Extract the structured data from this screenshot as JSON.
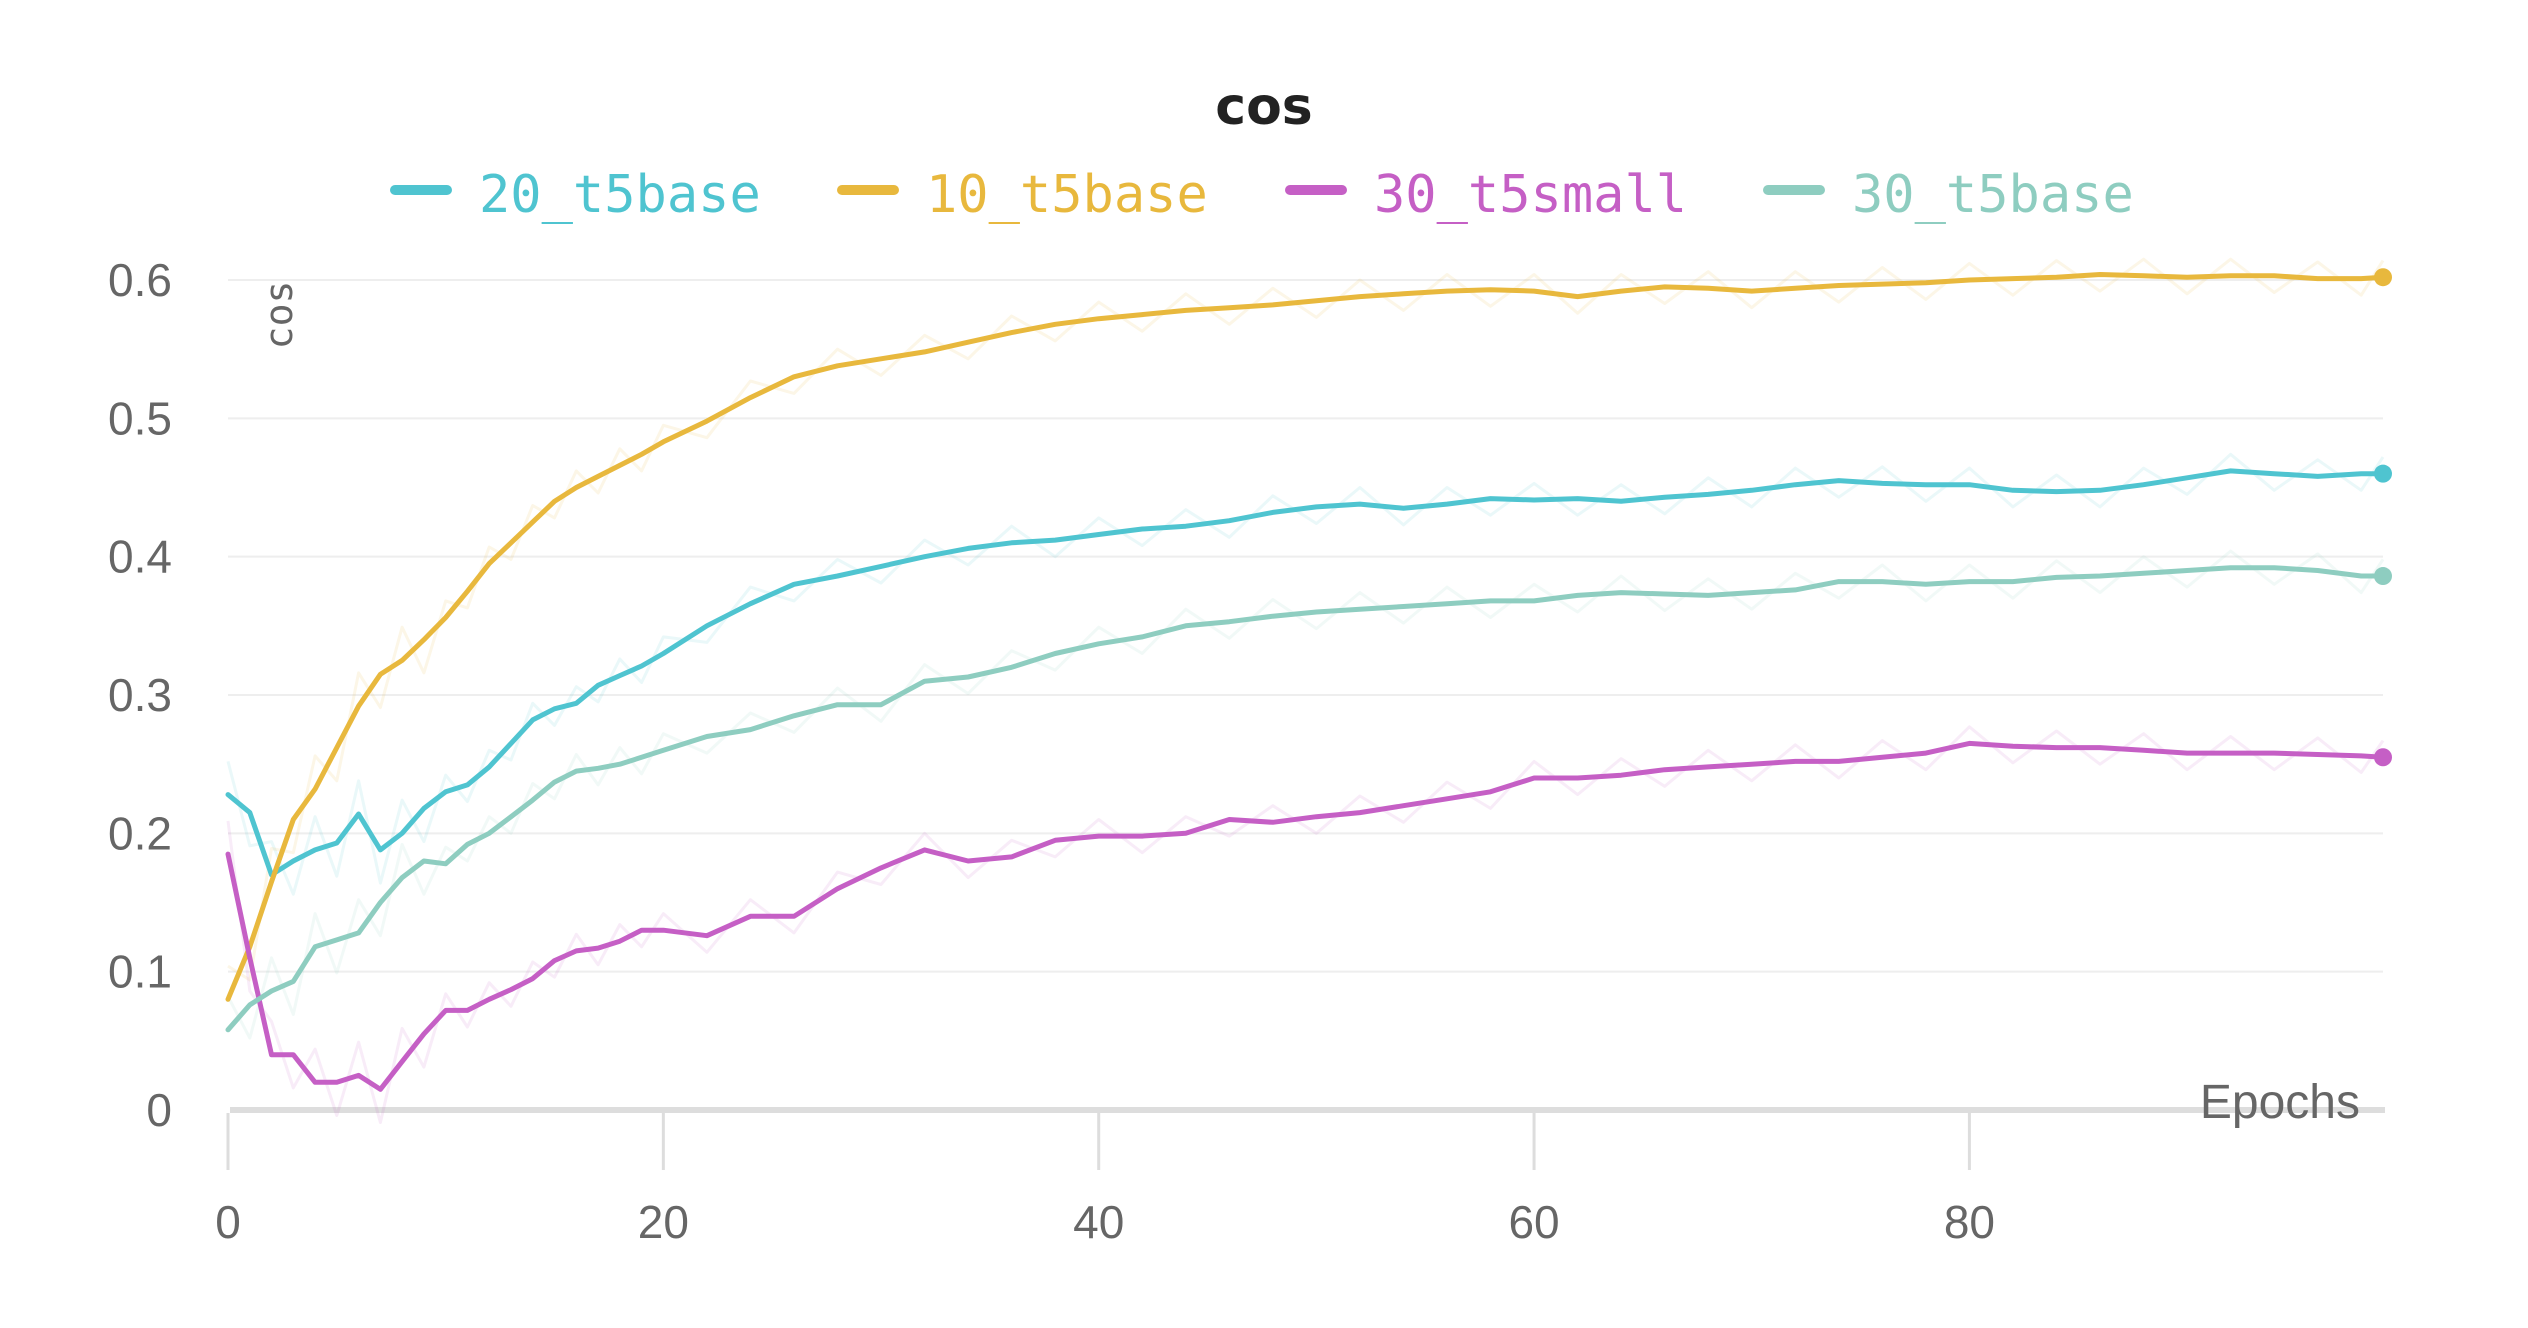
{
  "chart_data": {
    "type": "line",
    "title": "cos",
    "xlabel": "Epochs",
    "ylabel": "cos",
    "xlim": [
      0,
      99
    ],
    "ylim": [
      0,
      0.6
    ],
    "x_ticks": [
      0,
      20,
      40,
      60,
      80
    ],
    "y_ticks": [
      0,
      0.1,
      0.2,
      0.3,
      0.4,
      0.5,
      0.6
    ],
    "grid": true,
    "legend_position": "top",
    "series": [
      {
        "name": "20_t5base",
        "color": "#4fc4d0",
        "points": [
          [
            0,
            0.228
          ],
          [
            1,
            0.215
          ],
          [
            2,
            0.17
          ],
          [
            3,
            0.18
          ],
          [
            4,
            0.188
          ],
          [
            5,
            0.193
          ],
          [
            6,
            0.214
          ],
          [
            7,
            0.188
          ],
          [
            8,
            0.2
          ],
          [
            9,
            0.218
          ],
          [
            10,
            0.23
          ],
          [
            11,
            0.235
          ],
          [
            12,
            0.248
          ],
          [
            13,
            0.265
          ],
          [
            14,
            0.282
          ],
          [
            15,
            0.29
          ],
          [
            16,
            0.294
          ],
          [
            17,
            0.307
          ],
          [
            18,
            0.314
          ],
          [
            19,
            0.321
          ],
          [
            20,
            0.33
          ],
          [
            22,
            0.35
          ],
          [
            24,
            0.366
          ],
          [
            26,
            0.38
          ],
          [
            28,
            0.386
          ],
          [
            30,
            0.393
          ],
          [
            32,
            0.4
          ],
          [
            34,
            0.406
          ],
          [
            36,
            0.41
          ],
          [
            38,
            0.412
          ],
          [
            40,
            0.416
          ],
          [
            42,
            0.42
          ],
          [
            44,
            0.422
          ],
          [
            46,
            0.426
          ],
          [
            48,
            0.432
          ],
          [
            50,
            0.436
          ],
          [
            52,
            0.438
          ],
          [
            54,
            0.435
          ],
          [
            56,
            0.438
          ],
          [
            58,
            0.442
          ],
          [
            60,
            0.441
          ],
          [
            62,
            0.442
          ],
          [
            64,
            0.44
          ],
          [
            66,
            0.443
          ],
          [
            68,
            0.445
          ],
          [
            70,
            0.448
          ],
          [
            72,
            0.452
          ],
          [
            74,
            0.455
          ],
          [
            76,
            0.453
          ],
          [
            78,
            0.452
          ],
          [
            80,
            0.452
          ],
          [
            82,
            0.448
          ],
          [
            84,
            0.447
          ],
          [
            86,
            0.448
          ],
          [
            88,
            0.452
          ],
          [
            90,
            0.457
          ],
          [
            92,
            0.462
          ],
          [
            94,
            0.46
          ],
          [
            96,
            0.458
          ],
          [
            98,
            0.46
          ],
          [
            99,
            0.46
          ]
        ]
      },
      {
        "name": "10_t5base",
        "color": "#e8b83d",
        "points": [
          [
            0,
            0.08
          ],
          [
            1,
            0.118
          ],
          [
            2,
            0.165
          ],
          [
            3,
            0.21
          ],
          [
            4,
            0.232
          ],
          [
            5,
            0.262
          ],
          [
            6,
            0.292
          ],
          [
            7,
            0.315
          ],
          [
            8,
            0.325
          ],
          [
            9,
            0.34
          ],
          [
            10,
            0.356
          ],
          [
            11,
            0.375
          ],
          [
            12,
            0.395
          ],
          [
            13,
            0.41
          ],
          [
            14,
            0.425
          ],
          [
            15,
            0.44
          ],
          [
            16,
            0.45
          ],
          [
            17,
            0.458
          ],
          [
            18,
            0.466
          ],
          [
            19,
            0.474
          ],
          [
            20,
            0.483
          ],
          [
            22,
            0.498
          ],
          [
            24,
            0.515
          ],
          [
            26,
            0.53
          ],
          [
            28,
            0.538
          ],
          [
            30,
            0.543
          ],
          [
            32,
            0.548
          ],
          [
            34,
            0.555
          ],
          [
            36,
            0.562
          ],
          [
            38,
            0.568
          ],
          [
            40,
            0.572
          ],
          [
            42,
            0.575
          ],
          [
            44,
            0.578
          ],
          [
            46,
            0.58
          ],
          [
            48,
            0.582
          ],
          [
            50,
            0.585
          ],
          [
            52,
            0.588
          ],
          [
            54,
            0.59
          ],
          [
            56,
            0.592
          ],
          [
            58,
            0.593
          ],
          [
            60,
            0.592
          ],
          [
            62,
            0.588
          ],
          [
            64,
            0.592
          ],
          [
            66,
            0.595
          ],
          [
            68,
            0.594
          ],
          [
            70,
            0.592
          ],
          [
            72,
            0.594
          ],
          [
            74,
            0.596
          ],
          [
            76,
            0.597
          ],
          [
            78,
            0.598
          ],
          [
            80,
            0.6
          ],
          [
            82,
            0.601
          ],
          [
            84,
            0.602
          ],
          [
            86,
            0.604
          ],
          [
            88,
            0.603
          ],
          [
            90,
            0.602
          ],
          [
            92,
            0.603
          ],
          [
            94,
            0.603
          ],
          [
            96,
            0.601
          ],
          [
            98,
            0.601
          ],
          [
            99,
            0.602
          ]
        ]
      },
      {
        "name": "30_t5small",
        "color": "#c55fc5",
        "points": [
          [
            0,
            0.185
          ],
          [
            1,
            0.11
          ],
          [
            2,
            0.04
          ],
          [
            3,
            0.04
          ],
          [
            4,
            0.02
          ],
          [
            5,
            0.02
          ],
          [
            6,
            0.025
          ],
          [
            7,
            0.015
          ],
          [
            8,
            0.035
          ],
          [
            9,
            0.055
          ],
          [
            10,
            0.072
          ],
          [
            11,
            0.072
          ],
          [
            12,
            0.08
          ],
          [
            13,
            0.087
          ],
          [
            14,
            0.095
          ],
          [
            15,
            0.108
          ],
          [
            16,
            0.115
          ],
          [
            17,
            0.117
          ],
          [
            18,
            0.122
          ],
          [
            19,
            0.13
          ],
          [
            20,
            0.13
          ],
          [
            22,
            0.126
          ],
          [
            24,
            0.14
          ],
          [
            26,
            0.14
          ],
          [
            28,
            0.16
          ],
          [
            30,
            0.175
          ],
          [
            32,
            0.188
          ],
          [
            34,
            0.18
          ],
          [
            36,
            0.183
          ],
          [
            38,
            0.195
          ],
          [
            40,
            0.198
          ],
          [
            42,
            0.198
          ],
          [
            44,
            0.2
          ],
          [
            46,
            0.21
          ],
          [
            48,
            0.208
          ],
          [
            50,
            0.212
          ],
          [
            52,
            0.215
          ],
          [
            54,
            0.22
          ],
          [
            56,
            0.225
          ],
          [
            58,
            0.23
          ],
          [
            60,
            0.24
          ],
          [
            62,
            0.24
          ],
          [
            64,
            0.242
          ],
          [
            66,
            0.246
          ],
          [
            68,
            0.248
          ],
          [
            70,
            0.25
          ],
          [
            72,
            0.252
          ],
          [
            74,
            0.252
          ],
          [
            76,
            0.255
          ],
          [
            78,
            0.258
          ],
          [
            80,
            0.265
          ],
          [
            82,
            0.263
          ],
          [
            84,
            0.262
          ],
          [
            86,
            0.262
          ],
          [
            88,
            0.26
          ],
          [
            90,
            0.258
          ],
          [
            92,
            0.258
          ],
          [
            94,
            0.258
          ],
          [
            96,
            0.257
          ],
          [
            98,
            0.256
          ],
          [
            99,
            0.255
          ]
        ]
      },
      {
        "name": "30_t5base",
        "color": "#8ecdc0",
        "points": [
          [
            0,
            0.058
          ],
          [
            1,
            0.076
          ],
          [
            2,
            0.086
          ],
          [
            3,
            0.093
          ],
          [
            4,
            0.118
          ],
          [
            5,
            0.123
          ],
          [
            6,
            0.128
          ],
          [
            7,
            0.15
          ],
          [
            8,
            0.168
          ],
          [
            9,
            0.18
          ],
          [
            10,
            0.178
          ],
          [
            11,
            0.192
          ],
          [
            12,
            0.2
          ],
          [
            13,
            0.212
          ],
          [
            14,
            0.224
          ],
          [
            15,
            0.237
          ],
          [
            16,
            0.245
          ],
          [
            17,
            0.247
          ],
          [
            18,
            0.25
          ],
          [
            19,
            0.255
          ],
          [
            20,
            0.26
          ],
          [
            22,
            0.27
          ],
          [
            24,
            0.275
          ],
          [
            26,
            0.285
          ],
          [
            28,
            0.293
          ],
          [
            30,
            0.293
          ],
          [
            32,
            0.31
          ],
          [
            34,
            0.313
          ],
          [
            36,
            0.32
          ],
          [
            38,
            0.33
          ],
          [
            40,
            0.337
          ],
          [
            42,
            0.342
          ],
          [
            44,
            0.35
          ],
          [
            46,
            0.353
          ],
          [
            48,
            0.357
          ],
          [
            50,
            0.36
          ],
          [
            52,
            0.362
          ],
          [
            54,
            0.364
          ],
          [
            56,
            0.366
          ],
          [
            58,
            0.368
          ],
          [
            60,
            0.368
          ],
          [
            62,
            0.372
          ],
          [
            64,
            0.374
          ],
          [
            66,
            0.373
          ],
          [
            68,
            0.372
          ],
          [
            70,
            0.374
          ],
          [
            72,
            0.376
          ],
          [
            74,
            0.382
          ],
          [
            76,
            0.382
          ],
          [
            78,
            0.38
          ],
          [
            80,
            0.382
          ],
          [
            82,
            0.382
          ],
          [
            84,
            0.385
          ],
          [
            86,
            0.386
          ],
          [
            88,
            0.388
          ],
          [
            90,
            0.39
          ],
          [
            92,
            0.392
          ],
          [
            94,
            0.392
          ],
          [
            96,
            0.39
          ],
          [
            98,
            0.386
          ],
          [
            99,
            0.386
          ]
        ]
      }
    ]
  }
}
